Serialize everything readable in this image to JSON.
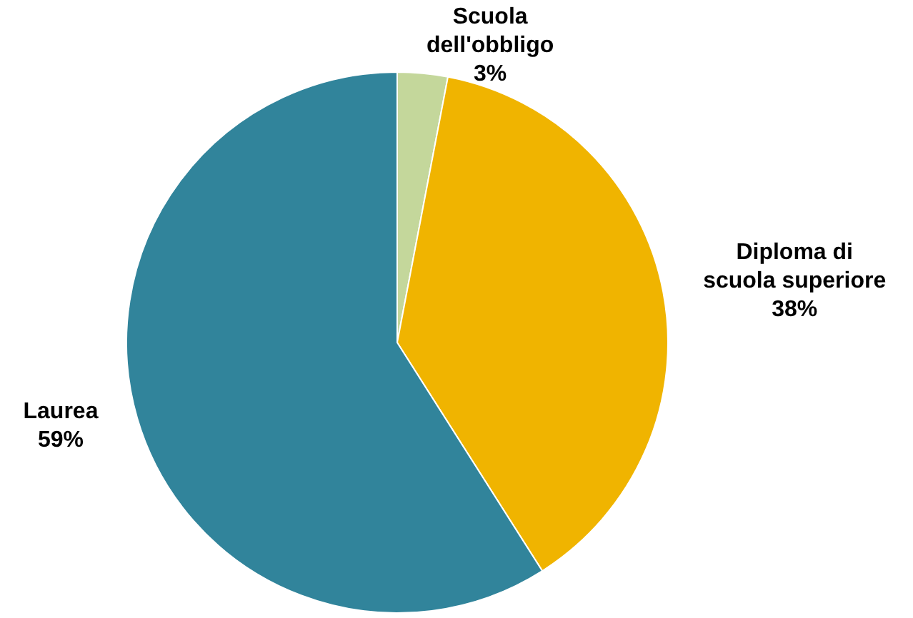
{
  "chart_data": {
    "type": "pie",
    "categories": [
      "Scuola dell'obbligo",
      "Diploma di scuola superiore",
      "Laurea"
    ],
    "values": [
      3,
      38,
      59
    ],
    "colors": [
      "#c4d79b",
      "#f0b400",
      "#31849b"
    ],
    "value_labels": [
      "3%",
      "38%",
      "59%"
    ],
    "legend": false
  }
}
